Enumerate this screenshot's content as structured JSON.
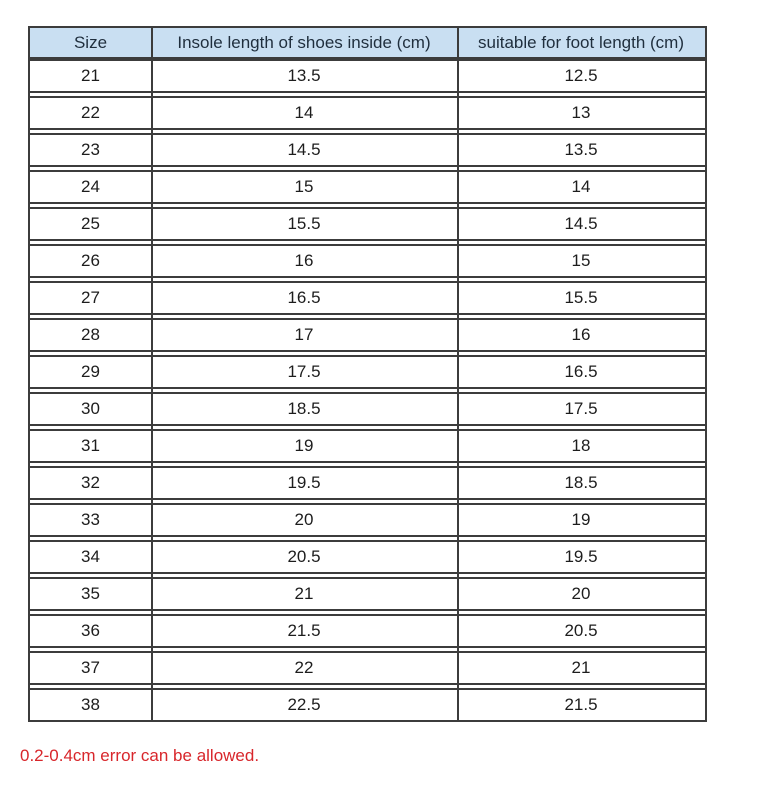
{
  "chart_data": {
    "type": "table",
    "title": "",
    "columns": [
      "Size",
      "Insole length of shoes inside (cm)",
      "suitable for foot length (cm)"
    ],
    "rows": [
      [
        "21",
        "13.5",
        "12.5"
      ],
      [
        "22",
        "14",
        "13"
      ],
      [
        "23",
        "14.5",
        "13.5"
      ],
      [
        "24",
        "15",
        "14"
      ],
      [
        "25",
        "15.5",
        "14.5"
      ],
      [
        "26",
        "16",
        "15"
      ],
      [
        "27",
        "16.5",
        "15.5"
      ],
      [
        "28",
        "17",
        "16"
      ],
      [
        "29",
        "17.5",
        "16.5"
      ],
      [
        "30",
        "18.5",
        "17.5"
      ],
      [
        "31",
        "19",
        "18"
      ],
      [
        "32",
        "19.5",
        "18.5"
      ],
      [
        "33",
        "20",
        "19"
      ],
      [
        "34",
        "20.5",
        "19.5"
      ],
      [
        "35",
        "21",
        "20"
      ],
      [
        "36",
        "21.5",
        "20.5"
      ],
      [
        "37",
        "22",
        "21"
      ],
      [
        "38",
        "22.5",
        "21.5"
      ]
    ],
    "note": "0.2-0.4cm error can be allowed.",
    "layout_hints": {
      "grid": "on",
      "header_position": "top"
    }
  },
  "colors": {
    "header_bg": "#c9dff2",
    "header_text": "#1f2e3d",
    "border": "#3c3c3c",
    "body_text": "#1d1d1d",
    "note_red": "#d8262b",
    "background": "#ffffff"
  }
}
